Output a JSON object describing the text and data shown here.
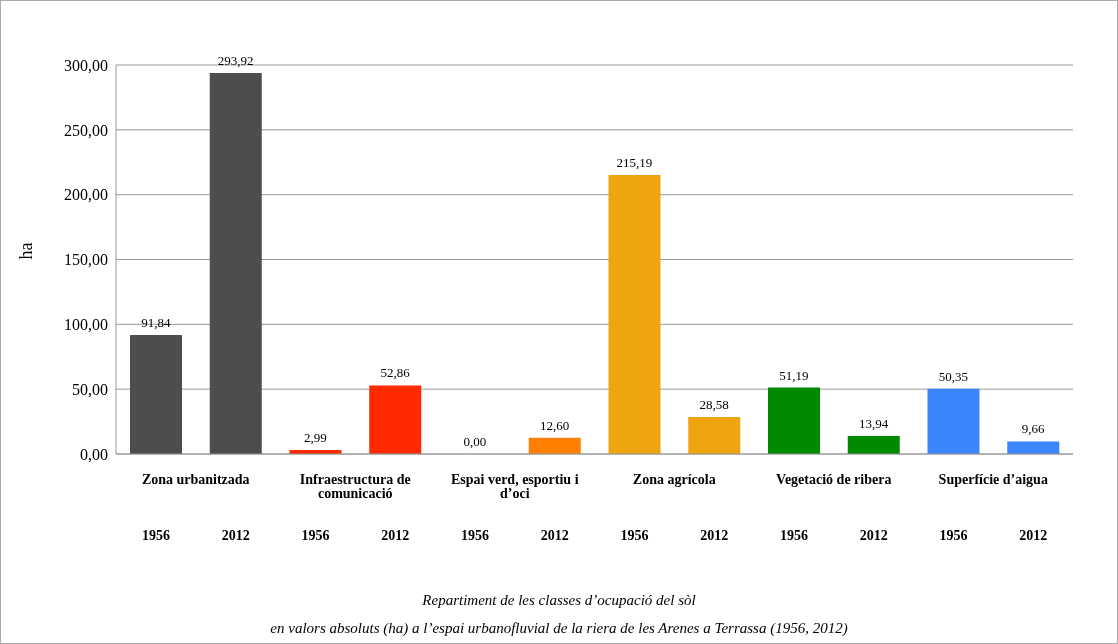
{
  "chart_data": {
    "type": "bar",
    "ylabel": "ha",
    "categories": [
      "1956",
      "2012",
      "1956",
      "2012",
      "1956",
      "2012",
      "1956",
      "2012",
      "1956",
      "2012",
      "1956",
      "2012"
    ],
    "values": [
      91.84,
      293.92,
      2.99,
      52.86,
      0.0,
      12.6,
      215.19,
      28.58,
      51.19,
      13.94,
      50.35,
      9.66
    ],
    "value_labels": [
      "91,84",
      "293,92",
      "2,99",
      "52,86",
      "0,00",
      "12,60",
      "215,19",
      "28,58",
      "51,19",
      "13,94",
      "50,35",
      "9,66"
    ],
    "colors": [
      "#4d4d4d",
      "#4d4d4d",
      "#ff2a00",
      "#ff2a00",
      "#ff8000",
      "#ff8000",
      "#eea50f",
      "#eea50f",
      "#008a00",
      "#008a00",
      "#3d85ff",
      "#3d85ff"
    ],
    "ylim": [
      0,
      300
    ],
    "yticks": [
      {
        "value": 0,
        "label": "0,00"
      },
      {
        "value": 50,
        "label": "50,00"
      },
      {
        "value": 100,
        "label": "100,00"
      },
      {
        "value": 150,
        "label": "150,00"
      },
      {
        "value": 200,
        "label": "200,00"
      },
      {
        "value": 250,
        "label": "250,00"
      },
      {
        "value": 300,
        "label": "300,00"
      }
    ],
    "grid": "y",
    "annotations": [
      "Zona urbanitzada",
      "Infraestructura de comunicació",
      "Espai verd, esportiu i d’oci",
      "Zona agrícola",
      "Vegetació de ribera",
      "Superfície d’aigua",
      "Repartiment de les classes d’ocupació del sòl",
      "en valors absoluts (ha) a l’espai urbanofluvial de la riera de les Arenes a Terrassa (1956, 2012)"
    ]
  }
}
